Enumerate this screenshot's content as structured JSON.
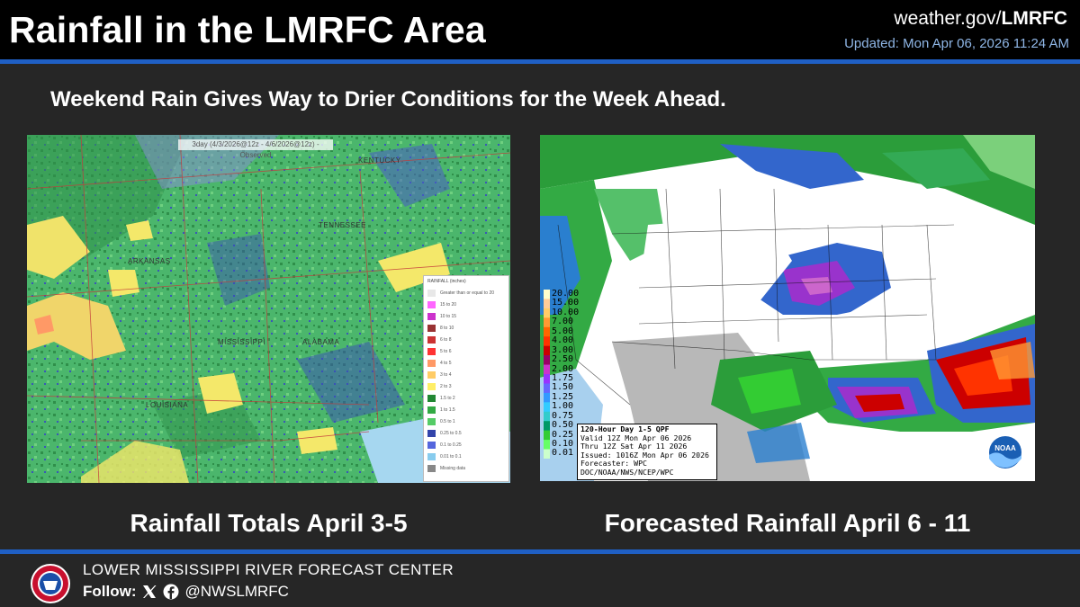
{
  "header": {
    "title": "Rainfall in the LMRFC Area",
    "site_prefix": "weather.gov/",
    "site_bold": "LMRFC",
    "updated": "Updated: Mon Apr 06, 2026 11:24 AM"
  },
  "subtitle": "Weekend Rain Gives Way to Drier Conditions for the Week Ahead.",
  "left_map": {
    "banner": "3day (4/3/2026@12z - 4/6/2026@12z) - Observed",
    "state_labels": [
      "KENTUCKY",
      "TENNESSEE",
      "ARKANSAS",
      "MISSISSIPPI",
      "ALABAMA",
      "LOUISIANA"
    ],
    "legend": {
      "title": "RAINFALL (inches)",
      "items": [
        {
          "label": "Greater than or equal to 20",
          "color": "#e8e8e8"
        },
        {
          "label": "15 to 20",
          "color": "#ff66ff"
        },
        {
          "label": "10 to 15",
          "color": "#cc33cc"
        },
        {
          "label": "8 to 10",
          "color": "#993333"
        },
        {
          "label": "6 to 8",
          "color": "#cc3333"
        },
        {
          "label": "5 to 6",
          "color": "#ff3333"
        },
        {
          "label": "4 to 5",
          "color": "#ff9966"
        },
        {
          "label": "3 to 4",
          "color": "#ffcc66"
        },
        {
          "label": "2 to 3",
          "color": "#ffee66"
        },
        {
          "label": "1.5 to 2",
          "color": "#228833"
        },
        {
          "label": "1 to 1.5",
          "color": "#33aa44"
        },
        {
          "label": "0.5 to 1",
          "color": "#55cc66"
        },
        {
          "label": "0.25 to 0.5",
          "color": "#3344aa"
        },
        {
          "label": "0.1 to 0.25",
          "color": "#5566dd"
        },
        {
          "label": "0.01 to 0.1",
          "color": "#88ccee"
        },
        {
          "label": "Missing data",
          "color": "#888888"
        }
      ]
    }
  },
  "right_map": {
    "scale": [
      "20.00",
      "15.00",
      "10.00",
      "7.00",
      "5.00",
      "4.00",
      "3.00",
      "2.50",
      "2.00",
      "1.75",
      "1.50",
      "1.25",
      "1.00",
      "0.75",
      "0.50",
      "0.25",
      "0.10",
      "0.01"
    ],
    "scale_colors": [
      "#ffffcc",
      "#ffcc99",
      "#ffcc66",
      "#ff9933",
      "#ff6600",
      "#ff3300",
      "#cc0000",
      "#990066",
      "#cc33cc",
      "#9933ff",
      "#6666ff",
      "#3399ff",
      "#33ccff",
      "#33cccc",
      "#009966",
      "#33cc33",
      "#66ff66",
      "#ccffcc"
    ],
    "info_title": "120-Hour Day 1-5 QPF",
    "info_lines": [
      "Valid 12Z Mon Apr 06 2026",
      "Thru 12Z Sat Apr 11 2026",
      "Issued: 1016Z Mon Apr 06 2026",
      "Forecaster: WPC",
      "DOC/NOAA/NWS/NCEP/WPC"
    ],
    "logo_text": "NOAA"
  },
  "captions": {
    "left": "Rainfall Totals April 3-5",
    "right": "Forecasted Rainfall April 6 - 11"
  },
  "footer": {
    "org": "LOWER MISSISSIPPI RIVER FORECAST CENTER",
    "follow_label": "Follow:",
    "handle": "@NWSLMRFC"
  },
  "colors": {
    "header_bg": "#000000",
    "rule": "#1f5fc4",
    "page_bg": "#262626",
    "updated_text": "#8fb6e6"
  },
  "icons": [
    "x-logo-icon",
    "facebook-icon",
    "nws-logo-icon",
    "noaa-logo-icon"
  ]
}
